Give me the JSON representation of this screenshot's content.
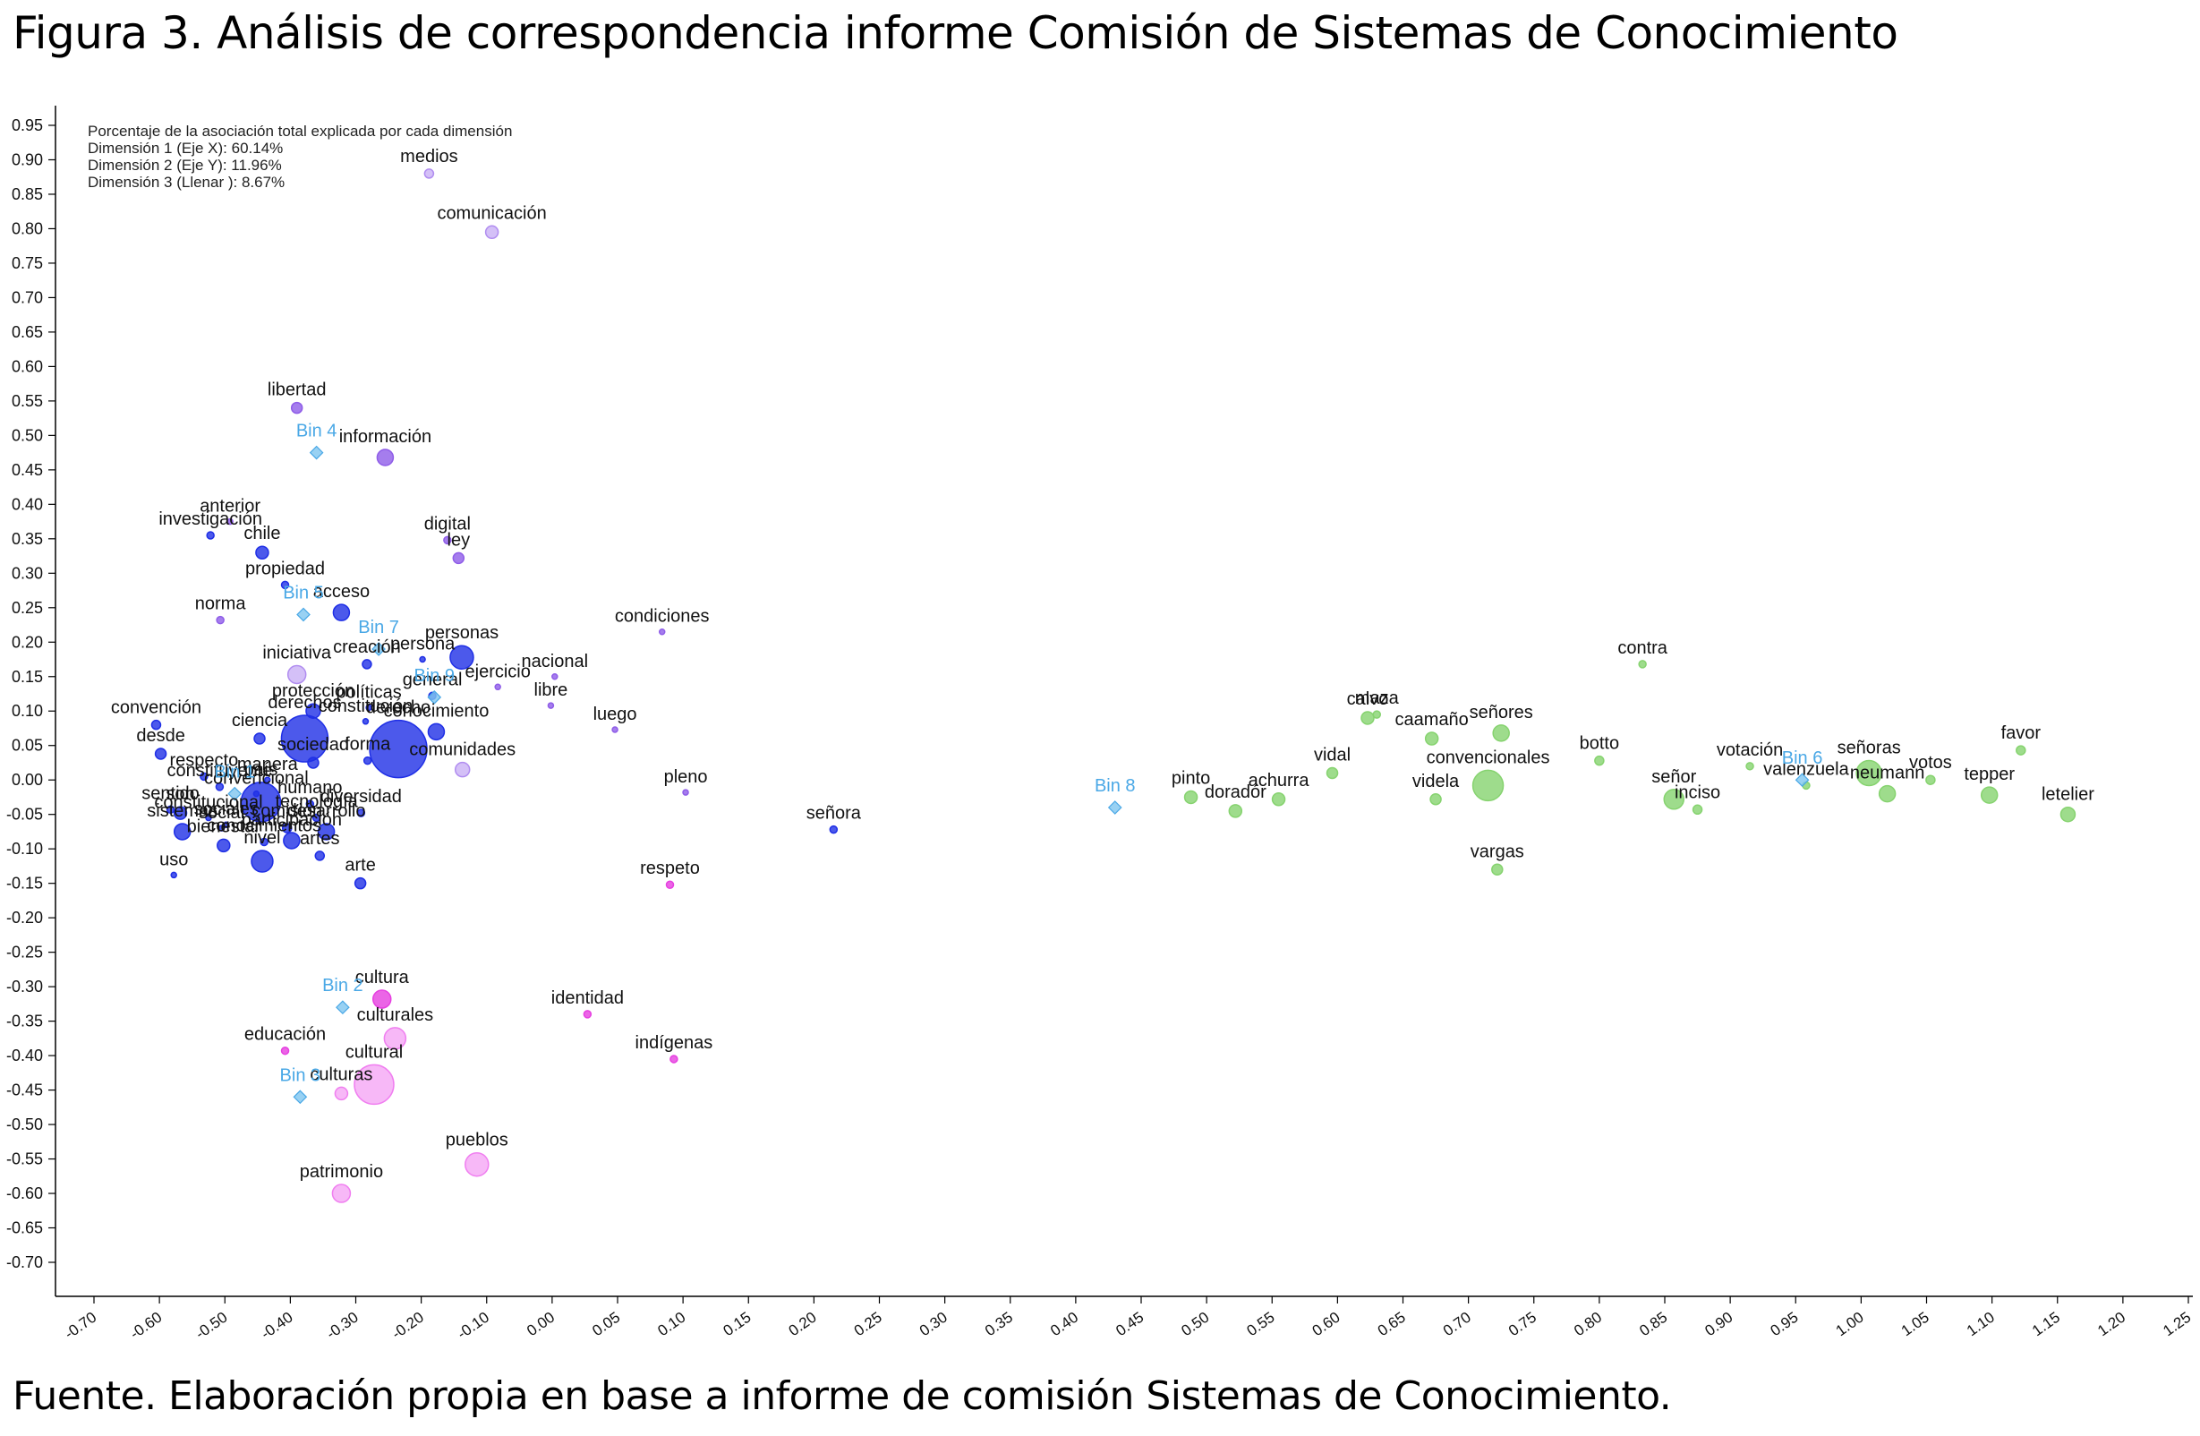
{
  "title": "Figura 3. Análisis de correspondencia informe Comisión de Sistemas de Conocimiento",
  "source": "Fuente. Elaboración propia en base a informe de comisión Sistemas de Conocimiento.",
  "chart_data": {
    "type": "scatter",
    "info_lines": [
      "Porcentaje de la asociación total explicada por cada dimensión",
      "Dimensión  1 (Eje X): 60.14%",
      "Dimensión  2 (Eje Y): 11.96%",
      "Dimensión  3 (Llenar ): 8.67%"
    ],
    "xlim": [
      -0.7,
      1.25
    ],
    "ylim": [
      -0.7,
      0.95
    ],
    "x_ticks": [
      "-0.70",
      "-0.60",
      "-0.50",
      "-0.40",
      "-0.30",
      "-0.20",
      "-0.10",
      "0.00",
      "0.05",
      "0.10",
      "0.15",
      "0.20",
      "0.25",
      "0.30",
      "0.35",
      "0.40",
      "0.45",
      "0.50",
      "0.55",
      "0.60",
      "0.65",
      "0.70",
      "0.75",
      "0.80",
      "0.85",
      "0.90",
      "0.95",
      "1.00",
      "1.05",
      "1.10",
      "1.15",
      "1.20",
      "1.25"
    ],
    "y_ticks": [
      "0.95",
      "0.90",
      "0.85",
      "0.80",
      "0.75",
      "0.70",
      "0.65",
      "0.60",
      "0.55",
      "0.50",
      "0.45",
      "0.40",
      "0.35",
      "0.30",
      "0.25",
      "0.20",
      "0.15",
      "0.10",
      "0.05",
      "0.00",
      "-0.05",
      "-0.10",
      "-0.15",
      "-0.20",
      "-0.25",
      "-0.30",
      "-0.35",
      "-0.40",
      "-0.45",
      "-0.50",
      "-0.55",
      "-0.60",
      "-0.65",
      "-0.70"
    ],
    "colors": {
      "blue": "#1f2fe6",
      "purple": "#8f5de8",
      "lavender": "#b08cf0",
      "pink": "#e63fe0",
      "lightpink": "#f07ef0",
      "green": "#86d36f",
      "bin": "#7ec6f0"
    },
    "bins": [
      {
        "label": "Bin 4",
        "x": -0.36,
        "y": 0.475
      },
      {
        "label": "Bin 5",
        "x": -0.38,
        "y": 0.24
      },
      {
        "label": "Bin 7",
        "x": -0.265,
        "y": 0.19
      },
      {
        "label": "Bin 2",
        "x": -0.32,
        "y": -0.33
      },
      {
        "label": "Bin 3",
        "x": -0.385,
        "y": -0.46
      },
      {
        "label": "Bin 8",
        "x": 0.43,
        "y": -0.04
      },
      {
        "label": "Bin 6",
        "x": 0.955,
        "y": 0.0
      },
      {
        "label": "Bin 1",
        "x": -0.485,
        "y": -0.02
      },
      {
        "label": "Bin 9",
        "x": -0.18,
        "y": 0.12
      }
    ],
    "points": [
      {
        "label": "medios",
        "x": -0.188,
        "y": 0.88,
        "r": 5,
        "c": "lavender"
      },
      {
        "label": "comunicación",
        "x": -0.092,
        "y": 0.795,
        "r": 7,
        "c": "lavender"
      },
      {
        "label": "libertad",
        "x": -0.39,
        "y": 0.54,
        "r": 6,
        "c": "purple"
      },
      {
        "label": "información",
        "x": -0.255,
        "y": 0.468,
        "r": 9,
        "c": "purple"
      },
      {
        "label": "digital",
        "x": -0.16,
        "y": 0.348,
        "r": 4,
        "c": "purple"
      },
      {
        "label": "ley",
        "x": -0.143,
        "y": 0.322,
        "r": 6,
        "c": "purple"
      },
      {
        "label": "anterior",
        "x": -0.492,
        "y": 0.375,
        "r": 3,
        "c": "purple"
      },
      {
        "label": "investigación",
        "x": -0.522,
        "y": 0.355,
        "r": 4,
        "c": "blue"
      },
      {
        "label": "chile",
        "x": -0.443,
        "y": 0.33,
        "r": 7,
        "c": "blue"
      },
      {
        "label": "propiedad",
        "x": -0.408,
        "y": 0.283,
        "r": 4,
        "c": "blue"
      },
      {
        "label": "acceso",
        "x": -0.322,
        "y": 0.243,
        "r": 9,
        "c": "blue"
      },
      {
        "label": "norma",
        "x": -0.507,
        "y": 0.232,
        "r": 4,
        "c": "purple"
      },
      {
        "label": "condiciones",
        "x": 0.084,
        "y": 0.215,
        "r": 3,
        "c": "purple"
      },
      {
        "label": "iniciativa",
        "x": -0.39,
        "y": 0.153,
        "r": 10,
        "c": "lavender"
      },
      {
        "label": "creación",
        "x": -0.283,
        "y": 0.168,
        "r": 5,
        "c": "blue"
      },
      {
        "label": "persona",
        "x": -0.198,
        "y": 0.175,
        "r": 3,
        "c": "blue"
      },
      {
        "label": "personas",
        "x": -0.138,
        "y": 0.178,
        "r": 13,
        "c": "blue"
      },
      {
        "label": "ejercicio",
        "x": -0.083,
        "y": 0.135,
        "r": 3,
        "c": "purple"
      },
      {
        "label": "nacional",
        "x": 0.002,
        "y": 0.15,
        "r": 3,
        "c": "purple"
      },
      {
        "label": "general",
        "x": -0.183,
        "y": 0.122,
        "r": 4,
        "c": "blue"
      },
      {
        "label": "libre",
        "x": -0.002,
        "y": 0.108,
        "r": 3,
        "c": "purple"
      },
      {
        "label": "luego",
        "x": 0.048,
        "y": 0.073,
        "r": 3,
        "c": "purple"
      },
      {
        "label": "protección",
        "x": -0.365,
        "y": 0.1,
        "r": 8,
        "c": "blue"
      },
      {
        "label": "políticas",
        "x": -0.28,
        "y": 0.105,
        "r": 3,
        "c": "blue"
      },
      {
        "label": "constitución",
        "x": -0.285,
        "y": 0.085,
        "r": 3,
        "c": "blue"
      },
      {
        "label": "conocimiento",
        "x": -0.177,
        "y": 0.07,
        "r": 9,
        "c": "blue"
      },
      {
        "label": "convención",
        "x": -0.605,
        "y": 0.08,
        "r": 5,
        "c": "blue"
      },
      {
        "label": "ciencia",
        "x": -0.447,
        "y": 0.06,
        "r": 6,
        "c": "blue"
      },
      {
        "label": "derechos",
        "x": -0.378,
        "y": 0.06,
        "r": 26,
        "c": "blue"
      },
      {
        "label": "derecho",
        "x": -0.235,
        "y": 0.045,
        "r": 32,
        "c": "blue"
      },
      {
        "label": "forma",
        "x": -0.282,
        "y": 0.028,
        "r": 4,
        "c": "blue"
      },
      {
        "label": "sociedad",
        "x": -0.365,
        "y": 0.025,
        "r": 6,
        "c": "blue"
      },
      {
        "label": "comunidades",
        "x": -0.137,
        "y": 0.015,
        "r": 8,
        "c": "lavender"
      },
      {
        "label": "desde",
        "x": -0.598,
        "y": 0.038,
        "r": 6,
        "c": "blue"
      },
      {
        "label": "respecto",
        "x": -0.532,
        "y": 0.005,
        "r": 4,
        "c": "blue"
      },
      {
        "label": "constituyente",
        "x": -0.508,
        "y": -0.01,
        "r": 4,
        "c": "blue"
      },
      {
        "label": "manera",
        "x": -0.435,
        "y": 0.0,
        "r": 3,
        "c": "blue"
      },
      {
        "label": "convencional",
        "x": -0.452,
        "y": -0.02,
        "r": 3,
        "c": "blue"
      },
      {
        "label": "país",
        "x": -0.445,
        "y": -0.032,
        "r": 22,
        "c": "blue"
      },
      {
        "label": "humano",
        "x": -0.37,
        "y": -0.035,
        "r": 4,
        "c": "blue"
      },
      {
        "label": "diversidad",
        "x": -0.292,
        "y": -0.048,
        "r": 4,
        "c": "blue"
      },
      {
        "label": "tecnología",
        "x": -0.36,
        "y": -0.055,
        "r": 4,
        "c": "blue"
      },
      {
        "label": "desarrollo",
        "x": -0.345,
        "y": -0.075,
        "r": 9,
        "c": "blue"
      },
      {
        "label": "sentido",
        "x": -0.583,
        "y": -0.043,
        "r": 4,
        "c": "blue"
      },
      {
        "label": "son",
        "x": -0.568,
        "y": -0.048,
        "r": 7,
        "c": "blue"
      },
      {
        "label": "constitucional",
        "x": -0.525,
        "y": -0.055,
        "r": 3,
        "c": "blue"
      },
      {
        "label": "sociales",
        "x": -0.498,
        "y": -0.065,
        "r": 3,
        "c": "blue"
      },
      {
        "label": "social",
        "x": -0.505,
        "y": -0.07,
        "r": 3,
        "c": "blue"
      },
      {
        "label": "comisión",
        "x": -0.405,
        "y": -0.07,
        "r": 5,
        "c": "blue"
      },
      {
        "label": "participación",
        "x": -0.398,
        "y": -0.088,
        "r": 9,
        "c": "blue"
      },
      {
        "label": "conocimientos",
        "x": -0.44,
        "y": -0.09,
        "r": 4,
        "c": "blue"
      },
      {
        "label": "sistemas",
        "x": -0.565,
        "y": -0.075,
        "r": 9,
        "c": "blue"
      },
      {
        "label": "bienestar",
        "x": -0.502,
        "y": -0.095,
        "r": 7,
        "c": "blue"
      },
      {
        "label": "nivel",
        "x": -0.443,
        "y": -0.118,
        "r": 12,
        "c": "blue"
      },
      {
        "label": "artes",
        "x": -0.355,
        "y": -0.11,
        "r": 5,
        "c": "blue"
      },
      {
        "label": "arte",
        "x": -0.293,
        "y": -0.15,
        "r": 6,
        "c": "blue"
      },
      {
        "label": "uso",
        "x": -0.578,
        "y": -0.138,
        "r": 3,
        "c": "blue"
      },
      {
        "label": "señora",
        "x": 0.215,
        "y": -0.072,
        "r": 4,
        "c": "blue"
      },
      {
        "label": "pleno",
        "x": 0.102,
        "y": -0.018,
        "r": 3,
        "c": "purple"
      },
      {
        "label": "respeto",
        "x": 0.09,
        "y": -0.152,
        "r": 4,
        "c": "pink"
      },
      {
        "label": "identidad",
        "x": 0.027,
        "y": -0.34,
        "r": 4,
        "c": "pink"
      },
      {
        "label": "indígenas",
        "x": 0.093,
        "y": -0.405,
        "r": 4,
        "c": "pink"
      },
      {
        "label": "cultura",
        "x": -0.26,
        "y": -0.318,
        "r": 10,
        "c": "pink"
      },
      {
        "label": "culturales",
        "x": -0.24,
        "y": -0.375,
        "r": 12,
        "c": "lightpink"
      },
      {
        "label": "educación",
        "x": -0.408,
        "y": -0.393,
        "r": 4,
        "c": "pink"
      },
      {
        "label": "culturas",
        "x": -0.322,
        "y": -0.455,
        "r": 7,
        "c": "lightpink"
      },
      {
        "label": "cultural",
        "x": -0.272,
        "y": -0.442,
        "r": 22,
        "c": "lightpink"
      },
      {
        "label": "pueblos",
        "x": -0.115,
        "y": -0.558,
        "r": 13,
        "c": "lightpink"
      },
      {
        "label": "patrimonio",
        "x": -0.322,
        "y": -0.6,
        "r": 10,
        "c": "lightpink"
      },
      {
        "label": "contra",
        "x": 0.833,
        "y": 0.168,
        "r": 4,
        "c": "green"
      },
      {
        "label": "calvo",
        "x": 0.623,
        "y": 0.09,
        "r": 7,
        "c": "green"
      },
      {
        "label": "maza",
        "x": 0.63,
        "y": 0.095,
        "r": 4,
        "c": "green"
      },
      {
        "label": "caamaño",
        "x": 0.672,
        "y": 0.06,
        "r": 7,
        "c": "green"
      },
      {
        "label": "señores",
        "x": 0.725,
        "y": 0.068,
        "r": 9,
        "c": "green"
      },
      {
        "label": "favor",
        "x": 1.122,
        "y": 0.043,
        "r": 5,
        "c": "green"
      },
      {
        "label": "botto",
        "x": 0.8,
        "y": 0.028,
        "r": 5,
        "c": "green"
      },
      {
        "label": "votación",
        "x": 0.915,
        "y": 0.02,
        "r": 4,
        "c": "green"
      },
      {
        "label": "vidal",
        "x": 0.596,
        "y": 0.01,
        "r": 6,
        "c": "green"
      },
      {
        "label": "señoras",
        "x": 1.006,
        "y": 0.01,
        "r": 14,
        "c": "green"
      },
      {
        "label": "votos",
        "x": 1.053,
        "y": 0.0,
        "r": 5,
        "c": "green"
      },
      {
        "label": "valenzuela",
        "x": 0.958,
        "y": -0.008,
        "r": 4,
        "c": "green"
      },
      {
        "label": "convencionales",
        "x": 0.715,
        "y": -0.008,
        "r": 17,
        "c": "green"
      },
      {
        "label": "neumann",
        "x": 1.02,
        "y": -0.02,
        "r": 9,
        "c": "green"
      },
      {
        "label": "tepper",
        "x": 1.098,
        "y": -0.022,
        "r": 9,
        "c": "green"
      },
      {
        "label": "pinto",
        "x": 0.488,
        "y": -0.025,
        "r": 7,
        "c": "green"
      },
      {
        "label": "achurra",
        "x": 0.555,
        "y": -0.028,
        "r": 7,
        "c": "green"
      },
      {
        "label": "videla",
        "x": 0.675,
        "y": -0.028,
        "r": 6,
        "c": "green"
      },
      {
        "label": "señor",
        "x": 0.857,
        "y": -0.028,
        "r": 11,
        "c": "green"
      },
      {
        "label": "doradór",
        "x": 0.522,
        "y": -0.045,
        "r": 7,
        "c": "green"
      },
      {
        "label": "inciso",
        "x": 0.875,
        "y": -0.043,
        "r": 5,
        "c": "green"
      },
      {
        "label": "letelier",
        "x": 1.158,
        "y": -0.05,
        "r": 8,
        "c": "green"
      },
      {
        "label": "vargas",
        "x": 0.722,
        "y": -0.13,
        "r": 6,
        "c": "green"
      }
    ],
    "labels": [
      {
        "key": "medios",
        "x": -0.188,
        "y": 0.88,
        "dx": 0,
        "dy": -18
      },
      {
        "key": "comunicación",
        "x": -0.092,
        "y": 0.795,
        "dx": 0,
        "dy": -20
      }
    ]
  }
}
